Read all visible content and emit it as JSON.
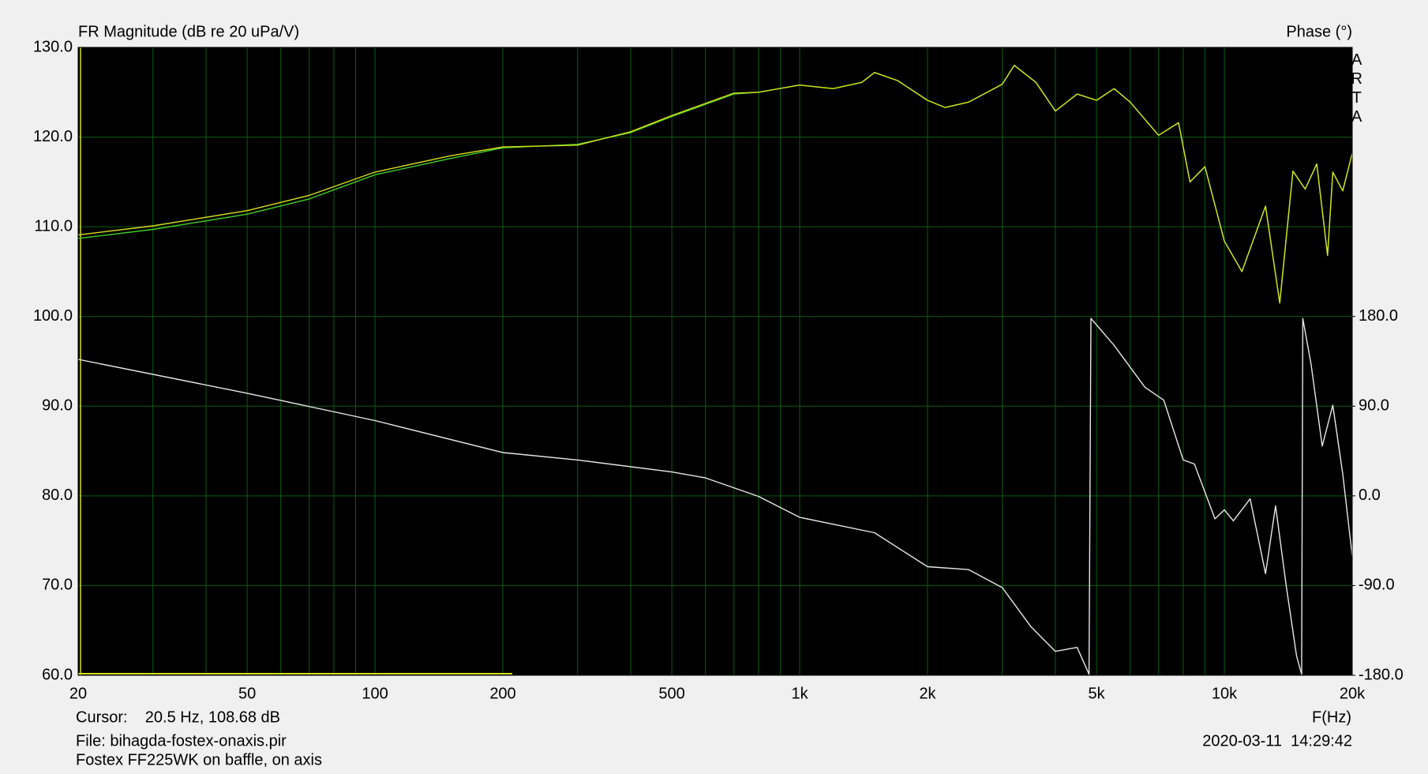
{
  "chart_data": {
    "type": "line",
    "title": "FR Magnitude (dB re 20 uPa/V)",
    "y2_title": "Phase (°)",
    "brand": "ARTA",
    "xlabel": "F(Hz)",
    "cursor": "Cursor:    20.5 Hz, 108.68 dB",
    "file": "File: bihagda-fostex-onaxis.pir",
    "description": "Fostex FF225WK on baffle, on axis",
    "timestamp": "2020-03-11  14:29:42",
    "xscale": "log",
    "grid": true,
    "background": "#000000",
    "grid_color": "#0b5e12",
    "xlim": [
      20,
      20000
    ],
    "xticks": [
      20,
      50,
      100,
      200,
      500,
      {
        "value": 1000,
        "label": "1k"
      },
      {
        "value": 2000,
        "label": "2k"
      },
      {
        "value": 5000,
        "label": "5k"
      },
      {
        "value": 10000,
        "label": "10k"
      },
      {
        "value": 20000,
        "label": "20k"
      }
    ],
    "xminorticks": [
      30,
      40,
      60,
      70,
      80,
      90,
      300,
      400,
      600,
      700,
      800,
      900,
      3000,
      4000,
      6000,
      7000,
      8000,
      9000
    ],
    "ylim": [
      60,
      130
    ],
    "yticks": [
      {
        "value": 60,
        "label": "60.0"
      },
      {
        "value": 70,
        "label": "70.0"
      },
      {
        "value": 80,
        "label": "80.0"
      },
      {
        "value": 90,
        "label": "90.0"
      },
      {
        "value": 100,
        "label": "100.0"
      },
      {
        "value": 110,
        "label": "110.0"
      },
      {
        "value": 120,
        "label": "120.0"
      },
      {
        "value": 130,
        "label": "130.0"
      }
    ],
    "y2lim": [
      -180,
      450
    ],
    "y2ticks": [
      {
        "value": -180,
        "label": "-180.0"
      },
      {
        "value": -90,
        "label": "-90.0"
      },
      {
        "value": 0,
        "label": "0.0"
      },
      {
        "value": 90,
        "label": "90.0"
      },
      {
        "value": 180,
        "label": "180.0"
      }
    ],
    "series": [
      {
        "color": "#3fcf2a",
        "x": [
          20,
          30,
          50,
          70,
          100,
          150,
          200,
          300,
          400,
          500,
          700,
          800,
          1000,
          1200,
          1400,
          1500,
          1700,
          2000,
          2200,
          2500,
          3000,
          3200,
          3600,
          4000,
          4500,
          5000,
          5500,
          6000,
          7000,
          7800,
          8300,
          9000,
          10000,
          11000,
          12500,
          13500,
          14500,
          15500,
          16500,
          17500,
          18000,
          19000,
          20000
        ],
        "values": [
          108.7,
          109.7,
          111.4,
          113.1,
          115.8,
          117.6,
          118.8,
          119.2,
          120.5,
          122.3,
          124.8,
          125,
          125.8,
          125.4,
          126.1,
          127.2,
          126.3,
          124.1,
          123.3,
          123.9,
          125.9,
          128,
          126.1,
          122.9,
          124.8,
          124.1,
          125.4,
          123.9,
          120.2,
          121.6,
          115,
          116.7,
          108.4,
          105,
          112.3,
          101.5,
          116.2,
          114.2,
          117,
          106.8,
          116.1,
          114,
          118.2
        ]
      },
      {
        "color": "#d6df1c",
        "x": [
          20,
          30,
          50,
          70,
          100,
          150,
          200,
          300,
          400,
          500,
          700,
          800,
          1000,
          1200,
          1400,
          1500,
          1700,
          2000,
          2200,
          2500,
          3000,
          3200,
          3600,
          4000,
          4500,
          5000,
          5500,
          6000,
          7000,
          7800,
          8300,
          9000,
          10000,
          11000,
          12500,
          13500,
          14500,
          15500,
          16500,
          17500,
          18000,
          19000,
          20000
        ],
        "values": [
          109.1,
          110.1,
          111.8,
          113.5,
          116.1,
          117.9,
          118.9,
          119.1,
          120.6,
          122.4,
          124.9,
          125,
          125.8,
          125.4,
          126.1,
          127.2,
          126.3,
          124.1,
          123.3,
          123.9,
          125.9,
          128,
          126.1,
          122.9,
          124.8,
          124.1,
          125.4,
          123.9,
          120.2,
          121.6,
          115,
          116.7,
          108.4,
          105,
          112.3,
          101.5,
          116.2,
          114.2,
          117,
          106.8,
          116.1,
          114,
          118.2
        ]
      },
      {
        "color": "#e8e8e8",
        "axis": "y2",
        "x": [
          20,
          50,
          100,
          200,
          300,
          500,
          600,
          800,
          1000,
          1500,
          2000,
          2500,
          3000,
          3500,
          4000,
          4500,
          4800,
          4850,
          5500,
          6500,
          7200,
          8000,
          8500,
          9500,
          10000,
          10500,
          11500,
          12500,
          13200,
          14000,
          14800,
          15200,
          15300,
          16000,
          17000,
          18000,
          19000,
          20000
        ],
        "values": [
          137,
          103,
          75.6,
          43.5,
          36,
          24,
          18,
          -0.5,
          -21.5,
          -37,
          -71,
          -74,
          -92,
          -131,
          -156,
          -152,
          -179,
          178,
          151,
          109,
          96,
          36,
          32,
          -23,
          -14,
          -25,
          -3,
          -78,
          -10,
          -92,
          -161,
          -179,
          178,
          132,
          50,
          91,
          22,
          -60
        ]
      }
    ]
  }
}
